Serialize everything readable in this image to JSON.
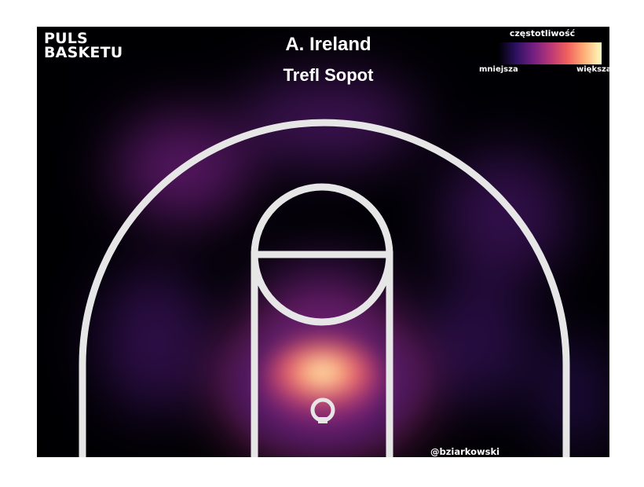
{
  "header": {
    "logo_line1": "PULS",
    "logo_line2": "BASKETU",
    "player": "A. Ireland",
    "team": "Trefl Sopot"
  },
  "legend": {
    "title": "częstotliwość",
    "min_label": "mniejsza",
    "max_label": "większa",
    "colorscale": [
      "#000004",
      "#2c115f",
      "#721f81",
      "#b73779",
      "#f1605d",
      "#feb078",
      "#fcfdbf"
    ],
    "placement": "top-right"
  },
  "footer": {
    "credit": "@bziarkowski"
  },
  "colors": {
    "background": "#000000",
    "court_lines": "#e6e6e6"
  },
  "chart_data": {
    "type": "heatmap",
    "subject": "shot frequency density on half court",
    "title": "A. Ireland",
    "subtitle": "Trefl Sopot",
    "scale": "relative frequency (mniejsza → większa)",
    "hotspots": [
      {
        "zone": "restricted area / under the basket",
        "intensity": 1.0
      },
      {
        "zone": "paint just above the rim",
        "intensity": 0.55
      },
      {
        "zone": "paint near free-throw line",
        "intensity": 0.3
      },
      {
        "zone": "left wing above the arc",
        "intensity": 0.35
      },
      {
        "zone": "top of the key above the arc",
        "intensity": 0.25
      },
      {
        "zone": "right wing above the arc",
        "intensity": 0.2
      },
      {
        "zone": "left mid-range",
        "intensity": 0.18
      },
      {
        "zone": "right mid-range",
        "intensity": 0.15
      },
      {
        "zone": "right corner",
        "intensity": 0.1
      }
    ]
  }
}
